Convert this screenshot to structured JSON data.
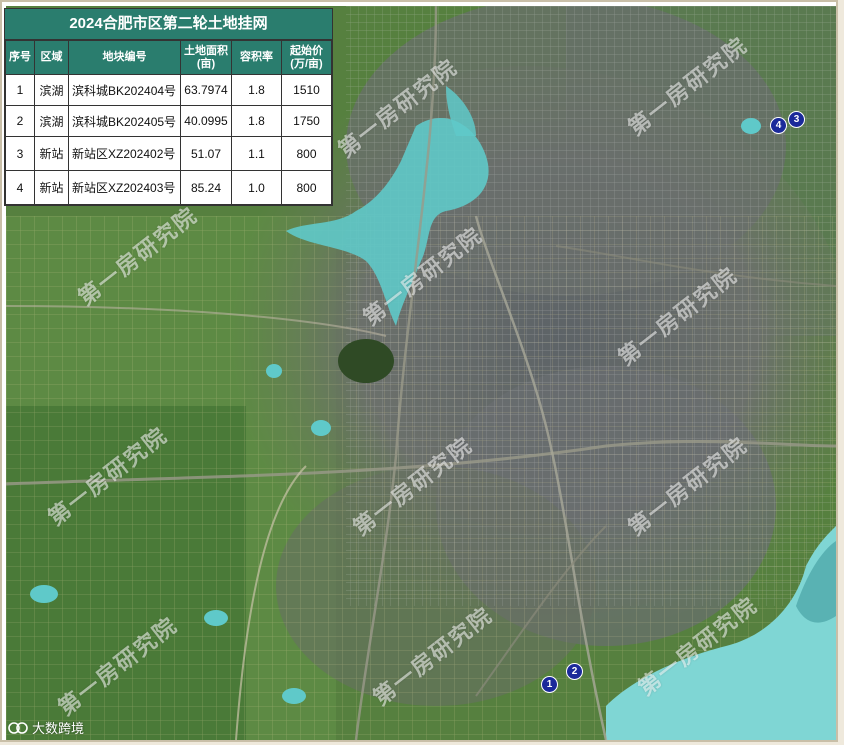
{
  "table": {
    "title": "2024合肥市区第二轮土地挂网",
    "headers": {
      "no": "序号",
      "district": "区域",
      "plot": "地块编号",
      "area_l1": "土地面积",
      "area_l2": "(亩)",
      "far": "容积率",
      "price_l1": "起始价",
      "price_l2": "(万/亩)"
    },
    "rows": [
      {
        "no": "1",
        "district": "滨湖",
        "plot": "滨科城BK202404号",
        "area": "63.7974",
        "far": "1.8",
        "price": "1510"
      },
      {
        "no": "2",
        "district": "滨湖",
        "plot": "滨科城BK202405号",
        "area": "40.0995",
        "far": "1.8",
        "price": "1750"
      },
      {
        "no": "3",
        "district": "新站",
        "plot": "新站区XZ202402号",
        "area": "51.07",
        "far": "1.1",
        "price": "800"
      },
      {
        "no": "4",
        "district": "新站",
        "plot": "新站区XZ202403号",
        "area": "85.24",
        "far": "1.0",
        "price": "800"
      }
    ]
  },
  "markers": {
    "m1": "1",
    "m2": "2",
    "m3": "3",
    "m4": "4"
  },
  "watermark": "第一房研究院",
  "brand": "大数跨境",
  "colors": {
    "header_bg": "#2a7d6e",
    "marker": "#1b2a9a",
    "lake": "#5fc9c9",
    "vegetation": "#4f7a3a",
    "urban": "#6f7470"
  }
}
